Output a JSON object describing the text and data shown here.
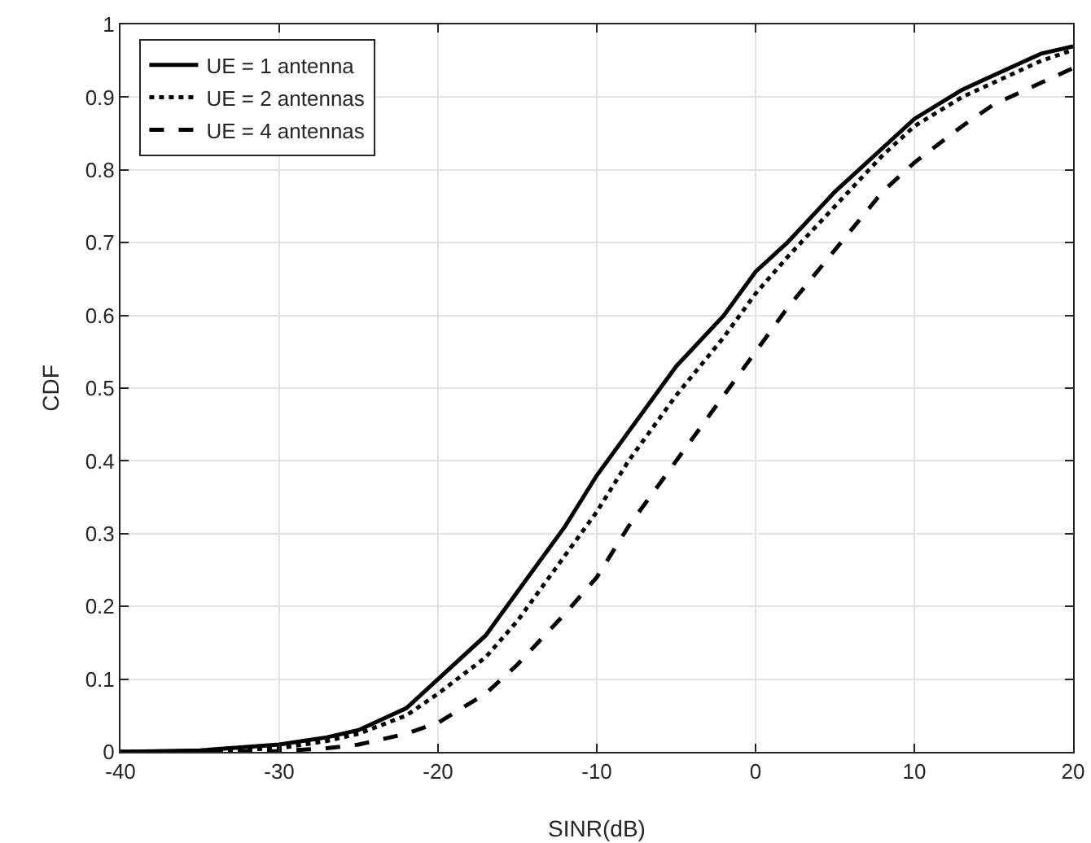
{
  "chart_data": {
    "type": "line",
    "xlabel": "SINR(dB)",
    "ylabel": "CDF",
    "x": [
      -40,
      -35,
      -30,
      -27,
      -25,
      -22,
      -20,
      -17,
      -15,
      -12,
      -10,
      -8,
      -5,
      -2,
      0,
      2,
      5,
      8,
      10,
      13,
      15,
      18,
      20
    ],
    "series": [
      {
        "name": "UE = 1 antenna",
        "color": "#000000",
        "line_style": "solid",
        "values": [
          0,
          0.002,
          0.01,
          0.02,
          0.03,
          0.06,
          0.1,
          0.16,
          0.22,
          0.31,
          0.38,
          0.44,
          0.53,
          0.6,
          0.66,
          0.7,
          0.77,
          0.83,
          0.87,
          0.91,
          0.93,
          0.96,
          0.97
        ]
      },
      {
        "name": "UE = 2 antennas",
        "color": "#000000",
        "line_style": "dotted",
        "values": [
          0,
          0.001,
          0.005,
          0.015,
          0.025,
          0.05,
          0.08,
          0.13,
          0.18,
          0.27,
          0.33,
          0.4,
          0.49,
          0.57,
          0.63,
          0.68,
          0.75,
          0.82,
          0.86,
          0.9,
          0.92,
          0.95,
          0.965
        ]
      },
      {
        "name": "UE = 4 antennas",
        "color": "#000000",
        "line_style": "dashed",
        "values": [
          0,
          0,
          0.001,
          0.005,
          0.01,
          0.025,
          0.04,
          0.08,
          0.12,
          0.19,
          0.24,
          0.31,
          0.4,
          0.49,
          0.55,
          0.61,
          0.69,
          0.77,
          0.81,
          0.86,
          0.89,
          0.92,
          0.94
        ]
      }
    ],
    "xlim": [
      -40,
      20
    ],
    "xticks": [
      -40,
      -30,
      -20,
      -10,
      0,
      10,
      20
    ],
    "ylim": [
      0,
      1
    ],
    "yticks": [
      0,
      0.1,
      0.2,
      0.3,
      0.4,
      0.5,
      0.6,
      0.7,
      0.8,
      0.9,
      1
    ],
    "grid": true,
    "legend": "top left",
    "marker": "none"
  }
}
